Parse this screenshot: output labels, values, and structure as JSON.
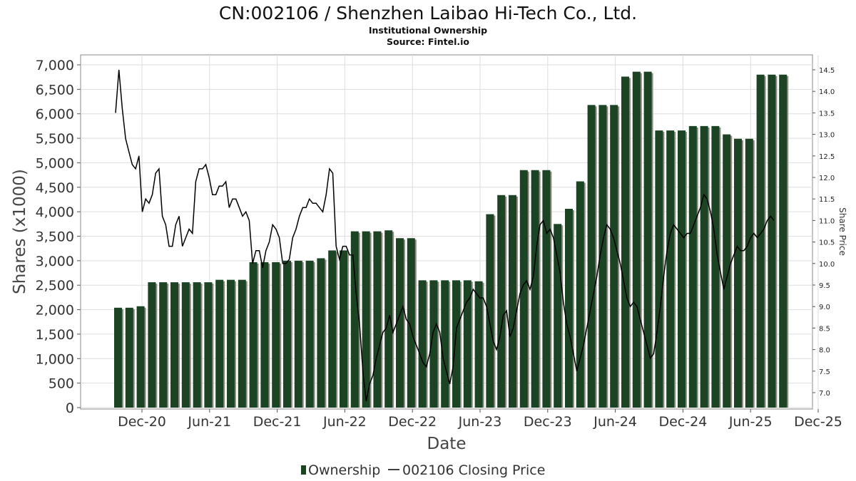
{
  "header": {
    "title": "CN:002106 / Shenzhen Laibao Hi-Tech Co., Ltd.",
    "subtitle": "Institutional Ownership",
    "source": "Source: Fintel.io"
  },
  "colors": {
    "bar_fill": "#1c4424",
    "bar_shadow": "#8c8c80",
    "line": "#000000",
    "grid": "#dddddd",
    "frame": "#888888"
  },
  "legend": {
    "ownership": "Ownership",
    "price": "002106 Closing Price"
  },
  "chart_data": {
    "type": "bar",
    "title": "CN:002106 / Shenzhen Laibao Hi-Tech Co., Ltd.",
    "xlabel": "Date",
    "ylabel": "Shares (x1000)",
    "y2label": "Share Price",
    "ylim": [
      0,
      7200
    ],
    "y2lim": [
      6.7,
      14.8
    ],
    "y_ticks": [
      "0",
      "500",
      "1,000",
      "1,500",
      "2,000",
      "2,500",
      "3,000",
      "3,500",
      "4,000",
      "4,500",
      "5,000",
      "5,500",
      "6,000",
      "6,500",
      "7,000"
    ],
    "y2_ticks": [
      "7.0",
      "7.5",
      "8.0",
      "8.5",
      "9.0",
      "9.5",
      "10.0",
      "10.5",
      "11.0",
      "11.5",
      "12.0",
      "12.5",
      "13.0",
      "13.5",
      "14.0",
      "14.5"
    ],
    "x_ticks": [
      "Dec-20",
      "Jun-21",
      "Dec-21",
      "Jun-22",
      "Dec-22",
      "Jun-23",
      "Dec-23",
      "Jun-24",
      "Dec-24",
      "Jun-25",
      "Dec-25"
    ],
    "grid": true,
    "legend_position": "bottom-center",
    "series": [
      {
        "name": "Ownership",
        "kind": "bar",
        "values": [
          2040,
          2040,
          2070,
          2560,
          2560,
          2560,
          2560,
          2560,
          2560,
          2610,
          2610,
          2610,
          2970,
          2970,
          2970,
          3000,
          3000,
          3000,
          3050,
          3210,
          3210,
          3600,
          3600,
          3600,
          3620,
          3460,
          3460,
          2600,
          2600,
          2600,
          2600,
          2600,
          2580,
          3950,
          4340,
          4340,
          4850,
          4850,
          4850,
          3750,
          4060,
          4620,
          6180,
          6180,
          6180,
          6760,
          6860,
          6860,
          5660,
          5660,
          5660,
          5750,
          5750,
          5750,
          5580,
          5490,
          5490,
          6800,
          6800,
          6800
        ]
      },
      {
        "name": "002106 Closing Price",
        "kind": "line",
        "values": [
          13.5,
          14.5,
          13.6,
          12.9,
          12.6,
          12.3,
          12.2,
          12.5,
          11.2,
          11.5,
          11.4,
          11.6,
          12.1,
          12.2,
          11.1,
          10.9,
          10.4,
          10.4,
          10.9,
          11.1,
          10.4,
          10.6,
          10.8,
          10.7,
          11.9,
          12.2,
          12.2,
          12.3,
          12.0,
          11.6,
          11.6,
          11.8,
          11.8,
          11.9,
          11.3,
          11.5,
          11.5,
          11.3,
          11.1,
          11.2,
          11.0,
          10.0,
          10.3,
          10.3,
          9.9,
          10.3,
          10.5,
          10.9,
          10.8,
          10.6,
          10.0,
          10.0,
          10.1,
          10.6,
          10.8,
          11.1,
          11.3,
          11.3,
          11.5,
          11.4,
          11.4,
          11.3,
          11.2,
          11.6,
          12.2,
          12.1,
          10.4,
          10.1,
          10.4,
          10.4,
          10.2,
          10.2,
          9.3,
          8.6,
          7.5,
          6.8,
          7.2,
          7.4,
          7.8,
          8.1,
          8.4,
          8.5,
          8.8,
          8.4,
          8.6,
          8.8,
          9.0,
          8.7,
          8.6,
          8.3,
          8.1,
          7.9,
          7.7,
          7.6,
          7.9,
          8.4,
          8.6,
          8.4,
          7.8,
          7.5,
          7.2,
          7.6,
          8.5,
          8.7,
          8.9,
          9.1,
          9.2,
          9.4,
          9.3,
          9.2,
          9.2,
          9.0,
          8.6,
          8.2,
          8.0,
          8.3,
          8.8,
          8.9,
          8.3,
          8.5,
          8.9,
          9.3,
          9.5,
          9.6,
          9.4,
          9.7,
          10.4,
          10.9,
          11.0,
          10.7,
          10.8,
          10.6,
          10.2,
          9.8,
          9.1,
          8.6,
          8.3,
          7.9,
          7.5,
          7.8,
          8.1,
          8.5,
          8.9,
          9.3,
          9.7,
          10.2,
          10.6,
          10.9,
          10.8,
          10.6,
          10.3,
          10.0,
          9.6,
          9.2,
          9.0,
          9.1,
          9.0,
          8.7,
          8.4,
          8.1,
          7.8,
          7.9,
          8.4,
          9.0,
          9.7,
          10.3,
          10.7,
          10.9,
          10.8,
          10.7,
          10.6,
          10.7,
          10.7,
          10.9,
          11.1,
          11.3,
          11.6,
          11.5,
          11.2,
          10.8,
          10.2,
          9.8,
          9.4,
          9.7,
          10.0,
          10.2,
          10.4,
          10.3,
          10.3,
          10.4,
          10.6,
          10.7,
          10.6,
          10.7,
          10.8,
          11.0,
          11.1,
          11.0
        ]
      }
    ]
  }
}
